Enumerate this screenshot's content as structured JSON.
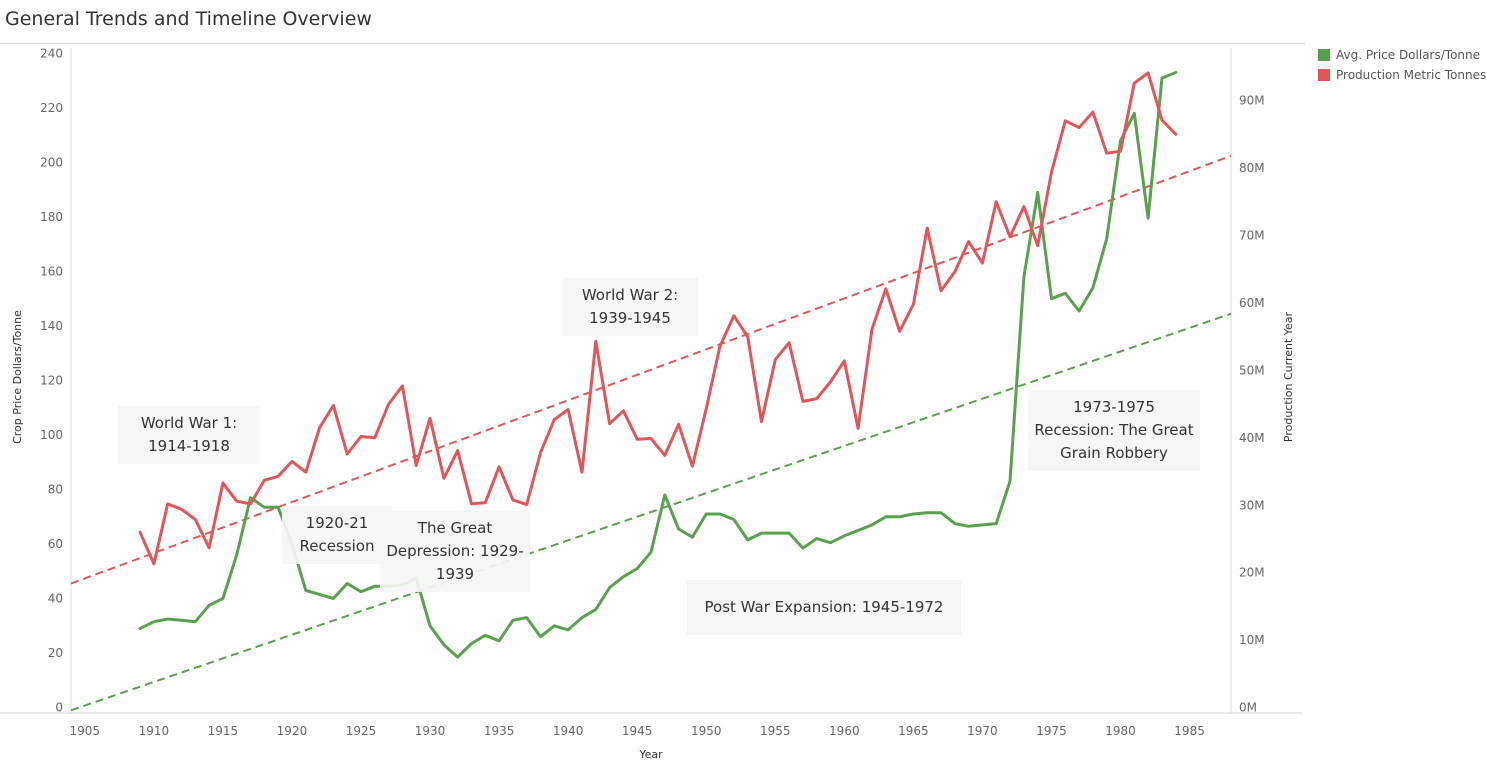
{
  "page": {
    "title": "General Trends and Timeline Overview"
  },
  "legend": [
    {
      "label": "Avg. Price Dollars/Tonne",
      "color": "#59a14f"
    },
    {
      "label": "Production Metric Tonnes",
      "color": "#e15759"
    }
  ],
  "annotations": [
    {
      "id": "ww1",
      "text": "World War 1: 1914-1918"
    },
    {
      "id": "recession-1920",
      "text": "1920-21 Recession"
    },
    {
      "id": "depression",
      "text": "The Great Depression: 1929-1939"
    },
    {
      "id": "ww2",
      "text": "World War 2: 1939-1945"
    },
    {
      "id": "post-war",
      "text": "Post War Expansion: 1945-1972"
    },
    {
      "id": "recession-1973",
      "text": "1973-1975 Recession: The Great Grain Robbery"
    }
  ],
  "chart_data": {
    "type": "line",
    "title": "General Trends and Timeline Overview",
    "xlabel": "Year",
    "ylabel": "Crop Price Dollars/Tonne",
    "y2label": "Production Current Year",
    "xlim": [
      1904,
      1988
    ],
    "ylim": [
      -2,
      242
    ],
    "y2lim": [
      -0.8,
      97.8
    ],
    "x_ticks": [
      1905,
      1910,
      1915,
      1920,
      1925,
      1930,
      1935,
      1940,
      1945,
      1950,
      1955,
      1960,
      1965,
      1970,
      1975,
      1980,
      1985
    ],
    "y_ticks": [
      0,
      20,
      40,
      60,
      80,
      100,
      120,
      140,
      160,
      180,
      200,
      220,
      240
    ],
    "y2_ticks": [
      {
        "value": 0,
        "label": "0M"
      },
      {
        "value": 10,
        "label": "10M"
      },
      {
        "value": 20,
        "label": "20M"
      },
      {
        "value": 30,
        "label": "30M"
      },
      {
        "value": 40,
        "label": "40M"
      },
      {
        "value": 50,
        "label": "50M"
      },
      {
        "value": 60,
        "label": "60M"
      },
      {
        "value": 70,
        "label": "70M"
      },
      {
        "value": 80,
        "label": "80M"
      },
      {
        "value": 90,
        "label": "90M"
      }
    ],
    "grid": false,
    "legend": "top-right",
    "x": [
      1909,
      1910,
      1911,
      1912,
      1913,
      1914,
      1915,
      1916,
      1917,
      1918,
      1919,
      1920,
      1921,
      1922,
      1923,
      1924,
      1925,
      1926,
      1927,
      1928,
      1929,
      1930,
      1931,
      1932,
      1933,
      1934,
      1935,
      1936,
      1937,
      1938,
      1939,
      1940,
      1941,
      1942,
      1943,
      1944,
      1945,
      1946,
      1947,
      1948,
      1949,
      1950,
      1951,
      1952,
      1953,
      1954,
      1955,
      1956,
      1957,
      1958,
      1959,
      1960,
      1961,
      1962,
      1963,
      1964,
      1965,
      1966,
      1967,
      1968,
      1969,
      1970,
      1971,
      1972,
      1973,
      1974,
      1975,
      1976,
      1977,
      1978,
      1979,
      1980,
      1981,
      1982,
      1983,
      1984
    ],
    "series": [
      {
        "name": "Avg. Price Dollars/Tonne",
        "axis": "left",
        "color": "#59a14f",
        "values": [
          29,
          31.5,
          32.5,
          32,
          31.5,
          37.5,
          40,
          56,
          77,
          73.5,
          73.5,
          60,
          43,
          41.5,
          40,
          45.5,
          42.5,
          44.5,
          44.5,
          45,
          47.5,
          30,
          23,
          18.5,
          23.5,
          26.5,
          24.5,
          32,
          33,
          26,
          30,
          28.5,
          33,
          36,
          44,
          48,
          51,
          57,
          78,
          65.5,
          62.5,
          71,
          71,
          69,
          61.5,
          64,
          64,
          64,
          58.5,
          62,
          60.5,
          63,
          65,
          67,
          70,
          70,
          71,
          71.5,
          71.5,
          67.5,
          66.5,
          67,
          67.5,
          83,
          158,
          189,
          150,
          152,
          145.5,
          154,
          172,
          208,
          218,
          179.5,
          231,
          233
        ]
      },
      {
        "name": "Production Metric Tonnes",
        "axis": "right",
        "color": "#e15759",
        "values": [
          26,
          21.3,
          30.2,
          29.4,
          27.9,
          23.7,
          33.3,
          30.6,
          30.2,
          33.7,
          34.3,
          36.5,
          34.9,
          41.5,
          44.8,
          37.6,
          40.2,
          40,
          45,
          47.7,
          35.9,
          42.9,
          34,
          38.1,
          30.2,
          30.4,
          35.7,
          30.8,
          30.1,
          37.8,
          42.7,
          44.2,
          34.9,
          54.3,
          42.1,
          44,
          39.8,
          39.9,
          37.4,
          42,
          35.8,
          44.3,
          53.6,
          58.1,
          55,
          42.4,
          51.6,
          54.1,
          45.4,
          45.8,
          48.3,
          51.4,
          41.4,
          56.1,
          62.1,
          55.8,
          59.8,
          71.1,
          61.8,
          64.6,
          69.1,
          65.9,
          75,
          69.8,
          74.3,
          68.5,
          79.4,
          87,
          86,
          88.3,
          82.2,
          82.5,
          92.6,
          94.1,
          87.1,
          85
        ]
      }
    ],
    "trendlines": [
      {
        "series": "Avg. Price Dollars/Tonne",
        "axis": "left",
        "color": "#59a14f",
        "x": [
          1904,
          1988
        ],
        "y": [
          -1,
          144.5
        ]
      },
      {
        "series": "Production Metric Tonnes",
        "axis": "right",
        "color": "#e15759",
        "x": [
          1904,
          1988
        ],
        "y": [
          18.4,
          81.8
        ]
      }
    ]
  }
}
